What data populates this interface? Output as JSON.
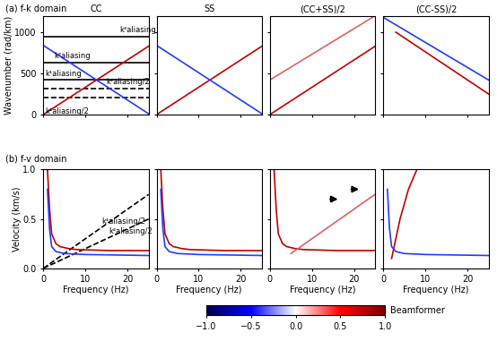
{
  "rows": [
    "(a) f-k domain",
    "(b) f-v domain"
  ],
  "colorbar": {
    "label": "Beamformer",
    "range": [
      -1,
      1
    ],
    "ticks": [
      {
        "value": -1,
        "label": "−1.0"
      },
      {
        "value": -0.5,
        "label": "−0.5"
      },
      {
        "value": 0,
        "label": "0.0"
      },
      {
        "value": 0.5,
        "label": "0.5"
      },
      {
        "value": 1,
        "label": "1.0"
      }
    ]
  },
  "chart_data": [
    {
      "type": "line",
      "title": "CC",
      "y_label": "Wavenumber (rad/km)",
      "xlim": [
        0,
        25
      ],
      "ylim": [
        0,
        1200
      ],
      "xticks": [
        0,
        10,
        20
      ],
      "yticks": [
        0,
        500,
        1000
      ],
      "tick_labels": "y",
      "series": [
        {
          "name": "k³aliasing",
          "color": "#000000",
          "line_style": "solid",
          "x": [
            0,
            25
          ],
          "values": [
            945,
            945
          ]
        },
        {
          "name": "k²aliasing",
          "color": "#000000",
          "line_style": "solid",
          "x": [
            0,
            25
          ],
          "values": [
            630,
            630
          ]
        },
        {
          "name": "k¹aliasing",
          "color": "#000000",
          "line_style": "solid",
          "x": [
            0,
            25
          ],
          "values": [
            420,
            420
          ]
        },
        {
          "name": "k²aliasing/2",
          "color": "#000000",
          "line_style": "dashed",
          "x": [
            0,
            25
          ],
          "values": [
            315,
            315
          ]
        },
        {
          "name": "k¹aliasing/2",
          "color": "#000000",
          "line_style": "dashed",
          "x": [
            0,
            25
          ],
          "values": [
            210,
            210
          ]
        },
        {
          "color": "#c00000",
          "line_style": "solid",
          "x": [
            0,
            25
          ],
          "values": [
            0,
            830
          ]
        },
        {
          "color": "#1f3cff",
          "line_style": "solid",
          "x": [
            0,
            25
          ],
          "values": [
            840,
            10
          ]
        }
      ]
    },
    {
      "type": "line",
      "title": "SS",
      "xlim": [
        0,
        25
      ],
      "ylim": [
        0,
        1200
      ],
      "xticks": [
        0,
        10,
        20
      ],
      "yticks": [
        0,
        500,
        1000
      ],
      "tick_labels": false,
      "series": [
        {
          "color": "#c00000",
          "line_style": "solid",
          "x": [
            0,
            25
          ],
          "values": [
            0,
            830
          ]
        },
        {
          "color": "#1f3cff",
          "line_style": "solid",
          "x": [
            0,
            25
          ],
          "values": [
            840,
            10
          ]
        }
      ]
    },
    {
      "type": "line",
      "title": "(CC+SS)/2",
      "xlim": [
        0,
        25
      ],
      "ylim": [
        0,
        1200
      ],
      "xticks": [
        0,
        10,
        20
      ],
      "yticks": [
        0,
        500,
        1000
      ],
      "tick_labels": false,
      "series": [
        {
          "color": "#c00000",
          "line_style": "solid",
          "x": [
            0,
            25
          ],
          "values": [
            0,
            830
          ]
        },
        {
          "color": "#e06060",
          "line_style": "solid",
          "x": [
            0,
            25
          ],
          "values": [
            420,
            1200
          ]
        }
      ]
    },
    {
      "type": "line",
      "title": "(CC-SS)/2",
      "xlim": [
        0,
        25
      ],
      "ylim": [
        0,
        1200
      ],
      "xticks": [
        0,
        10,
        20
      ],
      "yticks": [
        0,
        500,
        1000
      ],
      "tick_labels": false,
      "series": [
        {
          "color": "#c00000",
          "line_style": "solid",
          "x": [
            3,
            25
          ],
          "values": [
            1000,
            250
          ]
        },
        {
          "color": "#1f3cff",
          "line_style": "solid",
          "x": [
            0,
            25
          ],
          "values": [
            1180,
            420
          ]
        }
      ]
    },
    {
      "type": "line",
      "x_label": "Frequency (Hz)",
      "y_label": "Velocity (km/s)",
      "xlim": [
        0,
        25
      ],
      "ylim": [
        0,
        1
      ],
      "xticks": [
        0,
        10,
        20
      ],
      "yticks": [
        {
          "value": 0,
          "label": "0.0"
        },
        {
          "value": 0.5,
          "label": "0.5"
        },
        {
          "value": 1,
          "label": "1.0"
        }
      ],
      "tick_labels": true,
      "series": [
        {
          "name": "k¹aliasing/2",
          "color": "#000000",
          "line_style": "dashed",
          "x": [
            0,
            25
          ],
          "values": [
            0,
            0.748
          ]
        },
        {
          "name": "k²aliasing/2",
          "color": "#000000",
          "line_style": "dashed",
          "x": [
            0,
            25
          ],
          "values": [
            0,
            0.499
          ]
        },
        {
          "color": "#c00000",
          "line_style": "solid",
          "x": [
            1,
            1.5,
            2,
            3,
            4,
            6,
            8,
            12,
            16,
            20,
            25
          ],
          "values": [
            1.0,
            0.6,
            0.35,
            0.25,
            0.22,
            0.2,
            0.19,
            0.185,
            0.18,
            0.18,
            0.18
          ]
        },
        {
          "color": "#1f3cff",
          "line_style": "solid",
          "x": [
            1,
            1.5,
            2,
            3,
            5,
            10,
            25
          ],
          "values": [
            0.8,
            0.4,
            0.22,
            0.17,
            0.15,
            0.14,
            0.13
          ]
        }
      ]
    },
    {
      "type": "line",
      "x_label": "Frequency (Hz)",
      "xlim": [
        0,
        25
      ],
      "ylim": [
        0,
        1
      ],
      "xticks": [
        0,
        10,
        20
      ],
      "yticks": [
        {
          "value": 0,
          "label": "0.0"
        },
        {
          "value": 0.5,
          "label": "0.5"
        },
        {
          "value": 1,
          "label": "1.0"
        }
      ],
      "tick_labels": "x",
      "series": [
        {
          "color": "#c00000",
          "line_style": "solid",
          "x": [
            1,
            1.5,
            2,
            3,
            4,
            6,
            8,
            12,
            16,
            20,
            25
          ],
          "values": [
            1.0,
            0.6,
            0.35,
            0.25,
            0.22,
            0.2,
            0.19,
            0.185,
            0.18,
            0.18,
            0.18
          ]
        },
        {
          "color": "#1f3cff",
          "line_style": "solid",
          "x": [
            1,
            1.5,
            2,
            3,
            5,
            10,
            25
          ],
          "values": [
            0.8,
            0.4,
            0.22,
            0.17,
            0.15,
            0.14,
            0.13
          ]
        }
      ]
    },
    {
      "type": "line",
      "x_label": "Frequency (Hz)",
      "xlim": [
        0,
        25
      ],
      "ylim": [
        0,
        1
      ],
      "xticks": [
        0,
        10,
        20
      ],
      "yticks": [
        {
          "value": 0,
          "label": "0.0"
        },
        {
          "value": 0.5,
          "label": "0.5"
        },
        {
          "value": 1,
          "label": "1.0"
        }
      ],
      "tick_labels": "x",
      "series": [
        {
          "color": "#c00000",
          "line_style": "solid",
          "x": [
            1,
            1.5,
            2,
            3,
            4,
            6,
            8,
            12,
            16,
            20,
            25
          ],
          "values": [
            1.0,
            0.6,
            0.35,
            0.25,
            0.22,
            0.2,
            0.19,
            0.185,
            0.18,
            0.18,
            0.18
          ]
        },
        {
          "color": "#e06060",
          "line_style": "solid",
          "x": [
            5,
            10,
            15,
            20,
            25
          ],
          "values": [
            0.15,
            0.3,
            0.45,
            0.6,
            0.75
          ]
        }
      ]
    },
    {
      "type": "line",
      "x_label": "Frequency (Hz)",
      "xlim": [
        0,
        25
      ],
      "ylim": [
        0,
        1
      ],
      "xticks": [
        0,
        10,
        20
      ],
      "yticks": [
        {
          "value": 0,
          "label": "0.0"
        },
        {
          "value": 0.5,
          "label": "0.5"
        },
        {
          "value": 1,
          "label": "1.0"
        }
      ],
      "tick_labels": "x",
      "series": [
        {
          "color": "#c00000",
          "line_style": "solid",
          "x": [
            2,
            3,
            4,
            6,
            8
          ],
          "values": [
            0.1,
            0.3,
            0.5,
            0.8,
            1.0
          ]
        },
        {
          "color": "#1f3cff",
          "line_style": "solid",
          "x": [
            1,
            1.5,
            2,
            3,
            5,
            10,
            25
          ],
          "values": [
            0.8,
            0.4,
            0.22,
            0.17,
            0.15,
            0.14,
            0.13
          ]
        }
      ]
    }
  ]
}
